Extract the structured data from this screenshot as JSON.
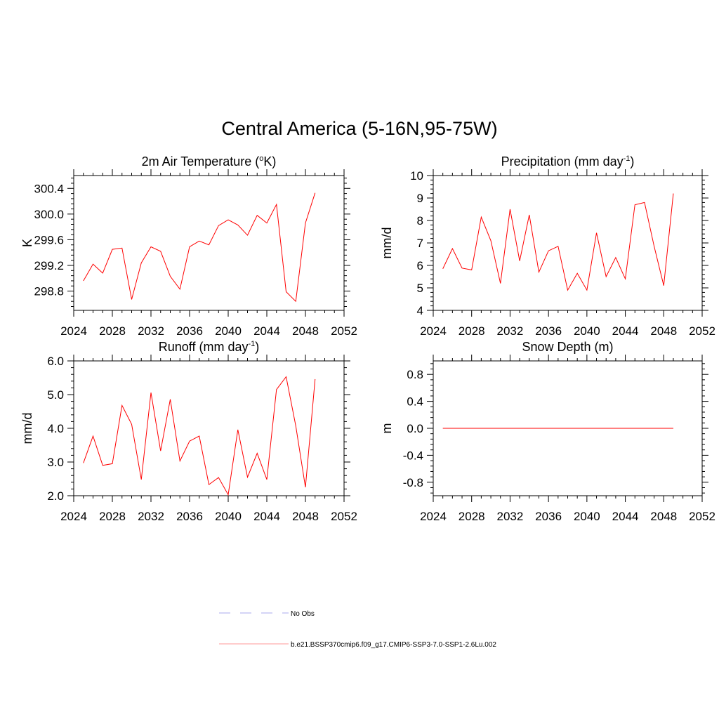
{
  "figure": {
    "title": "Central America (5-16N,95-75W)"
  },
  "chart_data": [
    {
      "type": "line",
      "title": "2m Air Temperature (",
      "title_sup": "o",
      "title_tail": "K)",
      "xlabel": "",
      "ylabel": "K",
      "xlim": [
        2024,
        2052
      ],
      "ylim": [
        298.5,
        300.6
      ],
      "xticks": [
        2024,
        2028,
        2032,
        2036,
        2040,
        2044,
        2048,
        2052
      ],
      "xtick_labels": [
        "2024",
        "2028",
        "2032",
        "2036",
        "2040",
        "2044",
        "2048",
        "2052"
      ],
      "yticks": [
        298.8,
        299.2,
        299.6,
        300.0,
        300.4
      ],
      "ytick_labels": [
        "298.8",
        "299.2",
        "299.6",
        "300.0",
        "300.4"
      ],
      "grid": false,
      "series": [
        {
          "color": "#ff0000",
          "x": [
            2025,
            2026,
            2027,
            2028,
            2029,
            2030,
            2031,
            2032,
            2033,
            2034,
            2035,
            2036,
            2037,
            2038,
            2039,
            2040,
            2041,
            2042,
            2043,
            2044,
            2045,
            2046,
            2047,
            2048,
            2049
          ],
          "values": [
            298.96,
            299.22,
            299.08,
            299.45,
            299.47,
            298.67,
            299.24,
            299.49,
            299.42,
            299.03,
            298.83,
            299.49,
            299.58,
            299.52,
            299.82,
            299.91,
            299.83,
            299.67,
            299.98,
            299.86,
            300.15,
            298.79,
            298.64,
            299.86,
            300.33
          ]
        }
      ]
    },
    {
      "type": "line",
      "title": "Precipitation (mm day",
      "title_sup": "-1",
      "title_tail": ")",
      "xlabel": "",
      "ylabel": "mm/d",
      "xlim": [
        2024,
        2052
      ],
      "ylim": [
        4,
        10
      ],
      "xticks": [
        2024,
        2028,
        2032,
        2036,
        2040,
        2044,
        2048,
        2052
      ],
      "xtick_labels": [
        "2024",
        "2028",
        "2032",
        "2036",
        "2040",
        "2044",
        "2048",
        "2052"
      ],
      "yticks": [
        4,
        5,
        6,
        7,
        8,
        9,
        10
      ],
      "ytick_labels": [
        "4",
        "5",
        "6",
        "7",
        "8",
        "9",
        "10"
      ],
      "grid": false,
      "series": [
        {
          "color": "#ff0000",
          "x": [
            2025,
            2026,
            2027,
            2028,
            2029,
            2030,
            2031,
            2032,
            2033,
            2034,
            2035,
            2036,
            2037,
            2038,
            2039,
            2040,
            2041,
            2042,
            2043,
            2044,
            2045,
            2046,
            2047,
            2048,
            2049
          ],
          "values": [
            5.85,
            6.75,
            5.88,
            5.8,
            8.15,
            7.1,
            5.2,
            8.5,
            6.2,
            8.25,
            5.7,
            6.65,
            6.85,
            4.9,
            5.65,
            4.9,
            7.45,
            5.5,
            6.35,
            5.4,
            8.7,
            8.8,
            6.85,
            5.1,
            9.2
          ]
        }
      ]
    },
    {
      "type": "line",
      "title": "Runoff (mm day",
      "title_sup": "-1",
      "title_tail": ")",
      "xlabel": "",
      "ylabel": "mm/d",
      "xlim": [
        2024,
        2052
      ],
      "ylim": [
        2.0,
        6.0
      ],
      "xticks": [
        2024,
        2028,
        2032,
        2036,
        2040,
        2044,
        2048,
        2052
      ],
      "xtick_labels": [
        "2024",
        "2028",
        "2032",
        "2036",
        "2040",
        "2044",
        "2048",
        "2052"
      ],
      "yticks": [
        2.0,
        3.0,
        4.0,
        5.0,
        6.0
      ],
      "ytick_labels": [
        "2.0",
        "3.0",
        "4.0",
        "5.0",
        "6.0"
      ],
      "grid": false,
      "series": [
        {
          "color": "#ff0000",
          "x": [
            2025,
            2026,
            2027,
            2028,
            2029,
            2030,
            2031,
            2032,
            2033,
            2034,
            2035,
            2036,
            2037,
            2038,
            2039,
            2040,
            2041,
            2042,
            2043,
            2044,
            2045,
            2046,
            2047,
            2048,
            2049
          ],
          "values": [
            2.97,
            3.77,
            2.9,
            2.95,
            4.68,
            4.12,
            2.48,
            5.06,
            3.33,
            4.86,
            3.03,
            3.62,
            3.77,
            2.33,
            2.54,
            2.03,
            3.96,
            2.55,
            3.26,
            2.48,
            5.15,
            5.53,
            4.07,
            2.25,
            5.46
          ]
        }
      ]
    },
    {
      "type": "line",
      "title": "Snow Depth (m)",
      "title_sup": "",
      "title_tail": "",
      "xlabel": "",
      "ylabel": "m",
      "xlim": [
        2024,
        2052
      ],
      "ylim": [
        -1.0,
        1.0
      ],
      "xticks": [
        2024,
        2028,
        2032,
        2036,
        2040,
        2044,
        2048,
        2052
      ],
      "xtick_labels": [
        "2024",
        "2028",
        "2032",
        "2036",
        "2040",
        "2044",
        "2048",
        "2052"
      ],
      "yticks": [
        -0.8,
        -0.4,
        0.0,
        0.4,
        0.8
      ],
      "ytick_labels": [
        "-0.8",
        "-0.4",
        "0.0",
        "0.4",
        "0.8"
      ],
      "grid": false,
      "series": [
        {
          "color": "#ff0000",
          "x": [
            2025,
            2026,
            2027,
            2028,
            2029,
            2030,
            2031,
            2032,
            2033,
            2034,
            2035,
            2036,
            2037,
            2038,
            2039,
            2040,
            2041,
            2042,
            2043,
            2044,
            2045,
            2046,
            2047,
            2048,
            2049
          ],
          "values": [
            0,
            0,
            0,
            0,
            0,
            0,
            0,
            0,
            0,
            0,
            0,
            0,
            0,
            0,
            0,
            0,
            0,
            0,
            0,
            0,
            0,
            0,
            0,
            0,
            0
          ]
        }
      ]
    }
  ],
  "legend": {
    "items": [
      {
        "label": "No Obs",
        "color": "#aaaaee",
        "style": "dashed"
      },
      {
        "label": "b.e21.BSSP370cmip6.f09_g17.CMIP6-SSP3-7.0-SSP1-2.6Lu.002",
        "color": "#ff9999",
        "style": "solid"
      }
    ]
  }
}
